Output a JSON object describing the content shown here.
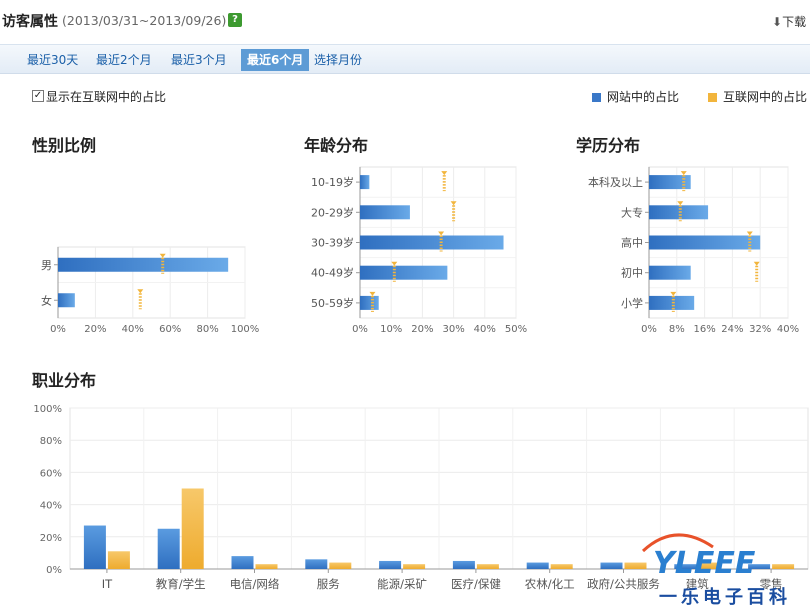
{
  "header": {
    "title": "访客属性",
    "date_range": "(2013/03/31~2013/09/26)",
    "help_label": "?",
    "download_label": "下载"
  },
  "tabs": [
    {
      "label": "最近30天",
      "active": false
    },
    {
      "label": "最近2个月",
      "active": false
    },
    {
      "label": "最近3个月",
      "active": false
    },
    {
      "label": "最近6个月",
      "active": true
    },
    {
      "label": "选择月份",
      "active": false
    }
  ],
  "options": {
    "show_internet_share_label": "显示在互联网中的占比",
    "checked": true
  },
  "legend": {
    "site_label": "网站中的占比",
    "internet_label": "互联网中的占比"
  },
  "colors": {
    "site": "#3a78c8",
    "internet": "#f2b53c",
    "tab_active": "#5d9bd5",
    "help": "#3d9a30"
  },
  "chart_data": [
    {
      "type": "bar",
      "orientation": "horizontal",
      "title": "性别比例",
      "categories": [
        "男",
        "女"
      ],
      "series": [
        {
          "name": "网站中的占比",
          "values": [
            91,
            9
          ]
        },
        {
          "name": "互联网中的占比",
          "values": [
            56,
            44
          ]
        }
      ],
      "xlim": [
        0,
        100
      ],
      "xticks": [
        "0%",
        "20%",
        "40%",
        "60%",
        "80%",
        "100%"
      ]
    },
    {
      "type": "bar",
      "orientation": "horizontal",
      "title": "年龄分布",
      "categories": [
        "10-19岁",
        "20-29岁",
        "30-39岁",
        "40-49岁",
        "50-59岁"
      ],
      "series": [
        {
          "name": "网站中的占比",
          "values": [
            3,
            16,
            46,
            28,
            6
          ]
        },
        {
          "name": "互联网中的占比",
          "values": [
            27,
            30,
            26,
            11,
            4
          ]
        }
      ],
      "xlim": [
        0,
        50
      ],
      "xticks": [
        "0%",
        "10%",
        "20%",
        "30%",
        "40%",
        "50%"
      ]
    },
    {
      "type": "bar",
      "orientation": "horizontal",
      "title": "学历分布",
      "categories": [
        "本科及以上",
        "大专",
        "高中",
        "初中",
        "小学"
      ],
      "series": [
        {
          "name": "网站中的占比",
          "values": [
            12,
            17,
            32,
            12,
            13
          ]
        },
        {
          "name": "互联网中的占比",
          "values": [
            10,
            9,
            29,
            31,
            7
          ]
        }
      ],
      "xlim": [
        0,
        40
      ],
      "xticks": [
        "0%",
        "8%",
        "16%",
        "24%",
        "32%",
        "40%"
      ]
    },
    {
      "type": "bar",
      "orientation": "vertical",
      "title": "职业分布",
      "categories": [
        "IT",
        "教育/学生",
        "电信/网络",
        "服务",
        "能源/采矿",
        "医疗/保健",
        "农林/化工",
        "政府/公共服务",
        "建筑",
        "零售"
      ],
      "series": [
        {
          "name": "网站中的占比",
          "values": [
            27,
            25,
            8,
            6,
            5,
            5,
            4,
            4,
            3,
            3
          ]
        },
        {
          "name": "互联网中的占比",
          "values": [
            11,
            50,
            3,
            4,
            3,
            3,
            3,
            4,
            4,
            3
          ]
        }
      ],
      "ylim": [
        0,
        100
      ],
      "yticks": [
        "0%",
        "20%",
        "40%",
        "60%",
        "80%",
        "100%"
      ]
    }
  ],
  "watermark": {
    "logo_text": "YLEEE",
    "caption": "一乐电子百科"
  }
}
